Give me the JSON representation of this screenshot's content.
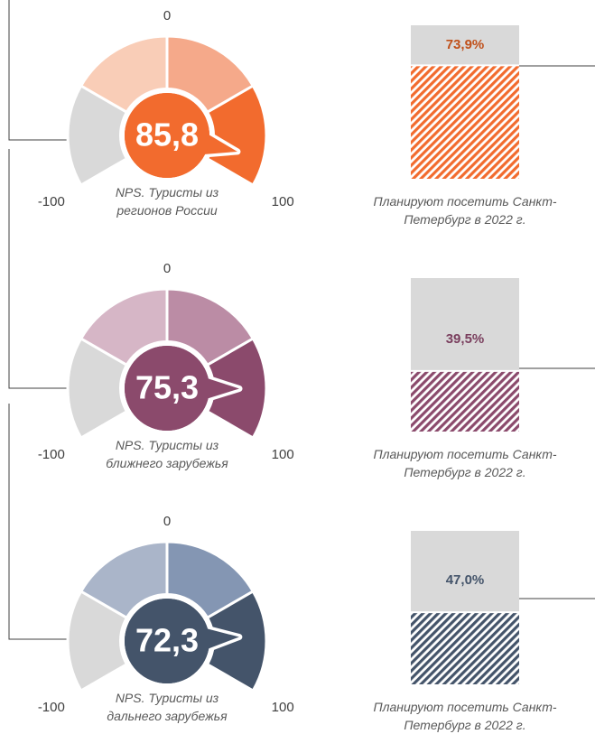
{
  "chart_data": [
    {
      "type": "gauge",
      "title": "NPS. Туристы из регионов России",
      "values": [
        85.8
      ],
      "value_labels": [
        "85,8"
      ],
      "ylim": [
        -100,
        100
      ],
      "yticks": [
        -100,
        0,
        100
      ],
      "color": "#f26b2e",
      "segment_colors": [
        "#d9d9d9",
        "#f9cdb7",
        "#f5a98a",
        "#f26b2e"
      ]
    },
    {
      "type": "bar",
      "title": "Планируют посетить Санкт-Петербург в 2022 г.",
      "values": [
        73.9
      ],
      "value_labels": [
        "73,9%"
      ],
      "ylim": [
        0,
        100
      ],
      "color": "#f26b2e",
      "label_color": "#c0501a"
    },
    {
      "type": "gauge",
      "title": "NPS. Туристы из ближнего зарубежья",
      "values": [
        75.3
      ],
      "value_labels": [
        "75,3"
      ],
      "ylim": [
        -100,
        100
      ],
      "yticks": [
        -100,
        0,
        100
      ],
      "color": "#8b4a6c",
      "segment_colors": [
        "#d9d9d9",
        "#d6b6c6",
        "#bb8ca5",
        "#8b4a6c"
      ]
    },
    {
      "type": "bar",
      "title": "Планируют посетить Санкт-Петербург в 2022 г.",
      "values": [
        39.5
      ],
      "value_labels": [
        "39,5%"
      ],
      "ylim": [
        0,
        100
      ],
      "color": "#8b4a6c",
      "label_color": "#7a3f5e"
    },
    {
      "type": "gauge",
      "title": "NPS. Туристы из дальнего зарубежья",
      "values": [
        72.3
      ],
      "value_labels": [
        "72,3"
      ],
      "ylim": [
        -100,
        100
      ],
      "yticks": [
        -100,
        0,
        100
      ],
      "color": "#44546a",
      "segment_colors": [
        "#d9d9d9",
        "#aab5c9",
        "#8496b3",
        "#44546a"
      ]
    },
    {
      "type": "bar",
      "title": "Планируют посетить Санкт-Петербург в 2022 г.",
      "values": [
        47.0
      ],
      "value_labels": [
        "47,0%"
      ],
      "ylim": [
        0,
        100
      ],
      "color": "#44546a",
      "label_color": "#44546a"
    }
  ]
}
